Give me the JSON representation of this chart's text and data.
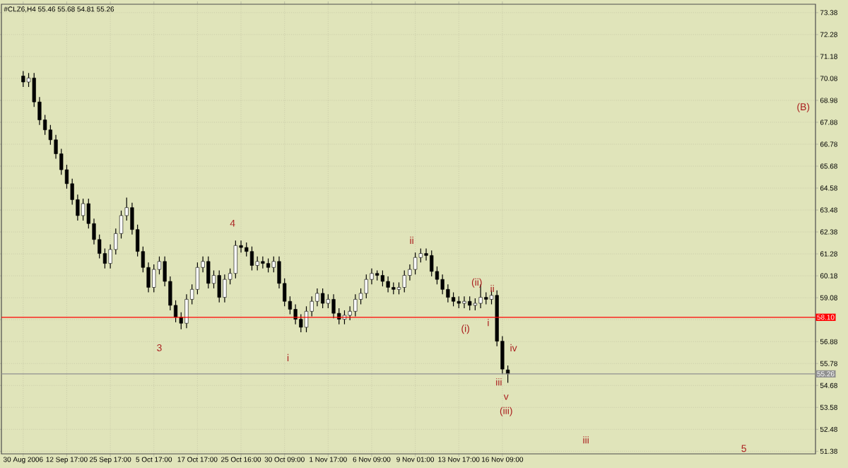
{
  "chart_data": {
    "type": "candlestick",
    "title": "#CLZ6,H4  55.46 55.68 54.81 55.26",
    "categories": [
      "30 Aug 2006",
      null,
      null,
      null,
      null,
      null,
      null,
      null,
      "12 Sep 17:00",
      null,
      null,
      null,
      null,
      null,
      null,
      null,
      "25 Sep 17:00",
      null,
      null,
      null,
      null,
      null,
      null,
      null,
      "5 Oct 17:00",
      null,
      null,
      null,
      null,
      null,
      null,
      null,
      "17 Oct 17:00",
      null,
      null,
      null,
      null,
      null,
      null,
      null,
      "25 Oct 16:00",
      null,
      null,
      null,
      null,
      null,
      null,
      null,
      "30 Oct 09:00",
      null,
      null,
      null,
      null,
      null,
      null,
      null,
      "1 Nov 17:00",
      null,
      null,
      null,
      null,
      null,
      null,
      null,
      "6 Nov 09:00",
      null,
      null,
      null,
      null,
      null,
      null,
      null,
      "9 Nov 01:00",
      null,
      null,
      null,
      null,
      null,
      null,
      null,
      "13 Nov 17:00",
      null,
      null,
      null,
      null,
      null,
      null,
      null,
      "16 Nov 09:00",
      null,
      null,
      null,
      null,
      null,
      null,
      null,
      null,
      null,
      null,
      null,
      null,
      null,
      null,
      null,
      null,
      null,
      null,
      null,
      null,
      null,
      null,
      null,
      null,
      null,
      null,
      null,
      null,
      null,
      null,
      null,
      null,
      null,
      null,
      null,
      null,
      null,
      null,
      null,
      null,
      null,
      null,
      null,
      null,
      null,
      null,
      null,
      null,
      null,
      null,
      null,
      null,
      null,
      null,
      null,
      null
    ],
    "ohlc": [
      [
        70.2,
        70.45,
        69.65,
        69.9
      ],
      [
        69.9,
        70.35,
        69.65,
        70.1
      ],
      [
        70.1,
        70.35,
        68.65,
        68.9
      ],
      [
        68.9,
        69.15,
        67.75,
        68.0
      ],
      [
        68.0,
        68.25,
        67.25,
        67.5
      ],
      [
        67.5,
        67.75,
        66.75,
        67.0
      ],
      [
        67.0,
        67.25,
        66.05,
        66.3
      ],
      [
        66.3,
        66.55,
        65.25,
        65.5
      ],
      [
        65.5,
        65.75,
        64.55,
        64.8
      ],
      [
        64.8,
        65.05,
        63.75,
        64.0
      ],
      [
        64.0,
        64.25,
        62.95,
        63.2
      ],
      [
        63.2,
        64.05,
        62.95,
        63.8
      ],
      [
        63.8,
        64.05,
        62.55,
        62.8
      ],
      [
        62.8,
        63.05,
        61.75,
        62.0
      ],
      [
        62.0,
        62.25,
        61.05,
        61.3
      ],
      [
        61.3,
        61.55,
        60.55,
        60.8
      ],
      [
        60.8,
        61.75,
        60.55,
        61.5
      ],
      [
        61.5,
        62.55,
        61.25,
        62.3
      ],
      [
        62.3,
        63.45,
        62.05,
        63.2
      ],
      [
        63.2,
        64.1,
        62.95,
        63.6
      ],
      [
        63.6,
        63.85,
        62.25,
        62.5
      ],
      [
        62.5,
        62.75,
        61.15,
        61.4
      ],
      [
        61.4,
        61.65,
        60.35,
        60.6
      ],
      [
        60.6,
        60.85,
        59.35,
        59.6
      ],
      [
        59.6,
        60.75,
        59.35,
        60.5
      ],
      [
        60.5,
        61.15,
        60.25,
        60.9
      ],
      [
        60.9,
        61.15,
        59.65,
        59.9
      ],
      [
        59.9,
        60.15,
        58.45,
        58.7
      ],
      [
        58.7,
        58.95,
        57.85,
        58.1
      ],
      [
        58.1,
        58.35,
        57.5,
        57.8
      ],
      [
        57.8,
        59.25,
        57.55,
        59.0
      ],
      [
        59.0,
        59.75,
        58.75,
        59.5
      ],
      [
        59.5,
        60.85,
        59.25,
        60.6
      ],
      [
        60.6,
        61.15,
        60.35,
        60.9
      ],
      [
        60.9,
        61.15,
        59.55,
        59.8
      ],
      [
        59.8,
        60.45,
        59.55,
        60.2
      ],
      [
        60.2,
        60.45,
        58.85,
        59.1
      ],
      [
        59.1,
        60.25,
        58.85,
        60.0
      ],
      [
        60.0,
        60.55,
        59.75,
        60.3
      ],
      [
        60.3,
        61.95,
        60.05,
        61.7
      ],
      [
        61.7,
        61.95,
        61.35,
        61.6
      ],
      [
        61.6,
        61.85,
        61.15,
        61.4
      ],
      [
        61.4,
        61.65,
        60.45,
        60.7
      ],
      [
        60.7,
        61.15,
        60.45,
        60.9
      ],
      [
        60.9,
        61.15,
        60.55,
        60.8
      ],
      [
        60.8,
        61.05,
        60.35,
        60.6
      ],
      [
        60.6,
        61.15,
        60.35,
        60.9
      ],
      [
        60.9,
        61.15,
        59.55,
        59.8
      ],
      [
        59.8,
        60.05,
        58.65,
        58.9
      ],
      [
        58.9,
        59.15,
        58.25,
        58.5
      ],
      [
        58.5,
        58.75,
        57.75,
        58.0
      ],
      [
        58.0,
        58.25,
        57.35,
        57.6
      ],
      [
        57.6,
        58.65,
        57.35,
        58.4
      ],
      [
        58.4,
        59.15,
        58.15,
        58.9
      ],
      [
        58.9,
        59.55,
        58.65,
        59.3
      ],
      [
        59.3,
        59.55,
        58.55,
        58.8
      ],
      [
        58.8,
        59.25,
        58.55,
        59.0
      ],
      [
        59.0,
        59.25,
        58.05,
        58.3
      ],
      [
        58.3,
        58.55,
        57.75,
        58.0
      ],
      [
        58.0,
        58.45,
        57.75,
        58.2
      ],
      [
        58.2,
        58.65,
        57.95,
        58.4
      ],
      [
        58.4,
        59.25,
        58.15,
        59.0
      ],
      [
        59.0,
        59.55,
        58.75,
        59.3
      ],
      [
        59.3,
        60.25,
        59.05,
        60.0
      ],
      [
        60.0,
        60.55,
        59.75,
        60.3
      ],
      [
        60.3,
        60.45,
        59.95,
        60.2
      ],
      [
        60.2,
        60.45,
        59.65,
        59.9
      ],
      [
        59.9,
        60.15,
        59.35,
        59.6
      ],
      [
        59.6,
        59.85,
        59.25,
        59.5
      ],
      [
        59.5,
        59.85,
        59.25,
        59.6
      ],
      [
        59.6,
        60.45,
        59.35,
        60.2
      ],
      [
        60.2,
        60.75,
        59.95,
        60.5
      ],
      [
        60.5,
        61.35,
        60.25,
        61.1
      ],
      [
        61.1,
        61.55,
        60.85,
        61.3
      ],
      [
        61.3,
        61.55,
        60.95,
        61.2
      ],
      [
        61.2,
        61.45,
        60.15,
        60.4
      ],
      [
        60.4,
        60.65,
        59.75,
        60.0
      ],
      [
        60.0,
        60.25,
        59.25,
        59.5
      ],
      [
        59.5,
        59.75,
        58.85,
        59.1
      ],
      [
        59.1,
        59.35,
        58.65,
        58.9
      ],
      [
        58.9,
        59.15,
        58.55,
        58.8
      ],
      [
        58.8,
        59.15,
        58.55,
        58.9
      ],
      [
        58.9,
        59.15,
        58.45,
        58.7
      ],
      [
        58.7,
        59.05,
        58.45,
        58.8
      ],
      [
        58.8,
        59.75,
        58.55,
        59.1
      ],
      [
        59.1,
        59.35,
        58.75,
        59.0
      ],
      [
        59.0,
        59.45,
        58.75,
        59.2
      ],
      [
        59.2,
        59.45,
        56.65,
        56.9
      ],
      [
        56.9,
        57.15,
        55.25,
        55.5
      ],
      [
        55.46,
        55.68,
        54.81,
        55.26
      ],
      null,
      null,
      null,
      null,
      null,
      null,
      null,
      null,
      null,
      null,
      null,
      null,
      null,
      null,
      null,
      null,
      null,
      null,
      null,
      null,
      null,
      null,
      null,
      null,
      null,
      null,
      null,
      null,
      null,
      null,
      null,
      null,
      null,
      null,
      null,
      null,
      null,
      null,
      null,
      null,
      null,
      null,
      null,
      null,
      null,
      null,
      null,
      null,
      null,
      null,
      null,
      null,
      null,
      null,
      null
    ],
    "color": "#000000",
    "ylim": [
      51.25,
      73.8
    ],
    "yticks": [
      51.38,
      52.48,
      53.58,
      54.68,
      55.78,
      56.88,
      {
        "value": 57.98,
        "label": null
      },
      59.08,
      60.18,
      61.28,
      62.38,
      63.48,
      64.58,
      65.68,
      66.78,
      67.88,
      68.98,
      70.08,
      71.18,
      72.28,
      73.38
    ],
    "grid": true,
    "ref_lines": [
      {
        "axis": "y",
        "value": 58.1,
        "label": "58.10",
        "color": "#ff0000"
      },
      {
        "axis": "y",
        "value": 55.26,
        "label": "55.26",
        "color": "#909090"
      }
    ],
    "annotations": [
      "3",
      "4",
      "i",
      "ii",
      "(i)",
      "(ii)",
      "i",
      "ii",
      "iii",
      "iv",
      "v",
      "(iii)",
      "iii",
      "5",
      "(B)"
    ]
  }
}
